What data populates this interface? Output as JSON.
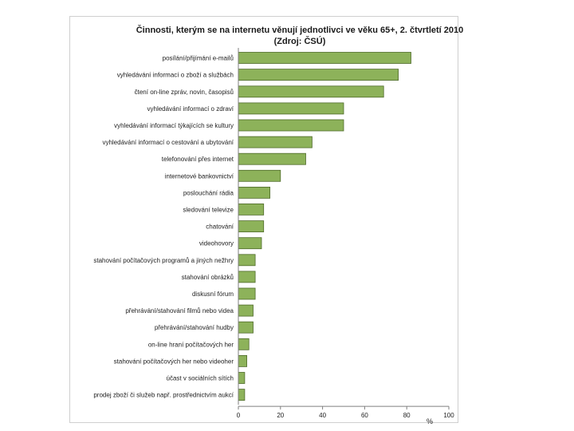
{
  "chart_data": {
    "type": "bar",
    "orientation": "horizontal",
    "title": "Činnosti, kterým se na internetu věnují jednotlivci ve věku 65+, 2. čtvrtletí 2010",
    "subtitle": "(Zdroj: ČSÚ)",
    "xlabel": "%",
    "ylabel": "",
    "xlim": [
      0,
      100
    ],
    "xticks": [
      0,
      20,
      40,
      60,
      80,
      100
    ],
    "grid": false,
    "legend": "none",
    "bar_color": "#8db25a",
    "bar_edge_color": "#4f6b2a",
    "categories": [
      "posílání/přijímání e-mailů",
      "vyhledávání informací o zboží a službách",
      "čtení on-line zpráv, novin, časopisů",
      "vyhledávání informací o zdraví",
      "vyhledávání informací týkajících se kultury",
      "vyhledávání informací o cestování a ubytování",
      "telefonování přes internet",
      "internetové bankovnictví",
      "poslouchání rádia",
      "sledování televize",
      "chatování",
      "videohovory",
      "stahování počítačových programů a jiných nežhry",
      "stahování obrázků",
      "diskusní fórum",
      "přehrávání/stahování filmů nebo videa",
      "přehrávání/stahování hudby",
      "on-line hraní počítačových her",
      "stahování počítačových her nebo videoher",
      "účast v sociálních sítích",
      "prodej zboží či služeb např. prostřednictvím aukcí"
    ],
    "values": [
      82,
      76,
      69,
      50,
      50,
      35,
      32,
      20,
      15,
      12,
      12,
      11,
      8,
      8,
      8,
      7,
      7,
      5,
      4,
      3,
      3
    ]
  }
}
